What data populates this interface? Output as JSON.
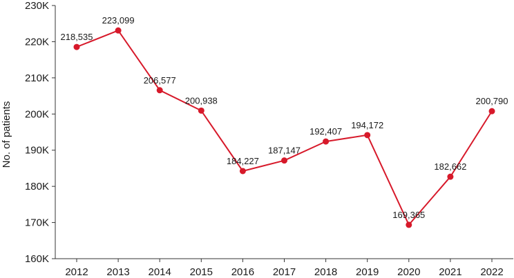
{
  "chart_data": {
    "type": "line",
    "title": "",
    "xlabel": "",
    "ylabel": "No. of patients",
    "categories": [
      "2012",
      "2013",
      "2014",
      "2015",
      "2016",
      "2017",
      "2018",
      "2019",
      "2020",
      "2021",
      "2022"
    ],
    "values": [
      218535,
      223099,
      206577,
      200938,
      184227,
      187147,
      192407,
      194172,
      169365,
      182662,
      200790
    ],
    "data_labels": [
      "218,535",
      "223,099",
      "206,577",
      "200,938",
      "184,227",
      "187,147",
      "192,407",
      "194,172",
      "169,365",
      "182,662",
      "200,790"
    ],
    "ylim": [
      160000,
      230000
    ],
    "yticks": [
      160000,
      170000,
      180000,
      190000,
      200000,
      210000,
      220000,
      230000
    ],
    "ytick_labels": [
      "160K",
      "170K",
      "180K",
      "190K",
      "200K",
      "210K",
      "220K",
      "230K"
    ],
    "grid": false,
    "legend": "none",
    "colors": {
      "line": "#d7192a",
      "marker": "#d7192a",
      "axis": "#333333"
    }
  }
}
